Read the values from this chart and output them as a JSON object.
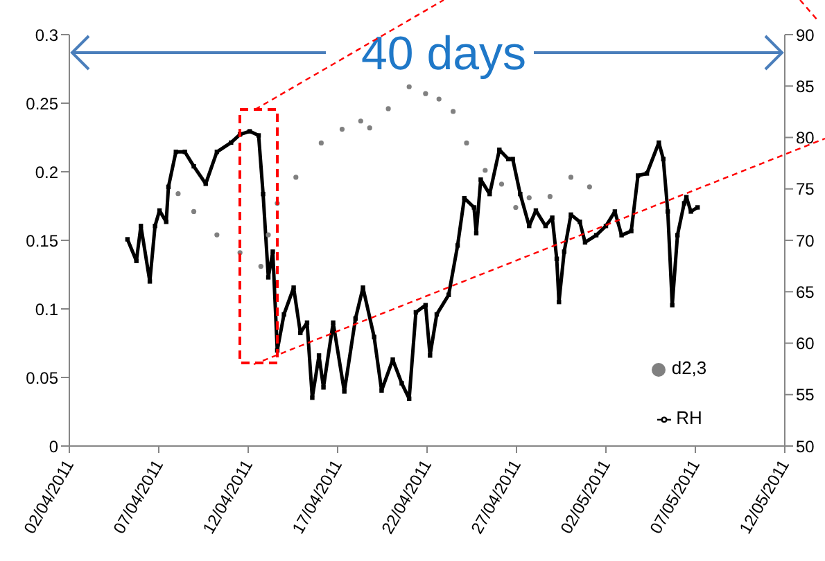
{
  "chart_data": {
    "type": "line",
    "annotations": [
      "40 days"
    ],
    "xlim": [
      "2011-04-02",
      "2011-05-12"
    ],
    "xticks": [
      {
        "value": "2011-04-02",
        "label": "02/04/2011"
      },
      {
        "value": "2011-04-07",
        "label": "07/04/2011"
      },
      {
        "value": "2011-04-12",
        "label": "12/04/2011"
      },
      {
        "value": "2011-04-17",
        "label": "17/04/2011"
      },
      {
        "value": "2011-04-22",
        "label": "22/04/2011"
      },
      {
        "value": "2011-04-27",
        "label": "27/04/2011"
      },
      {
        "value": "2011-05-02",
        "label": "02/05/2011"
      },
      {
        "value": "2011-05-07",
        "label": "07/05/2011"
      },
      {
        "value": "2011-05-12",
        "label": "12/05/2011"
      }
    ],
    "ylim": [
      0,
      0.3
    ],
    "yticks": [
      0,
      0.05,
      0.1,
      0.15,
      0.2,
      0.25,
      0.3
    ],
    "y2lim": [
      50,
      90
    ],
    "y2ticks": [
      50,
      55,
      60,
      65,
      70,
      75,
      80,
      85,
      90
    ],
    "grid": false,
    "legend": "bottom right",
    "series": [
      {
        "name": "d2,3",
        "type": "scatter",
        "color": "#808080",
        "marker": "circle",
        "x": [
          "2011-04-08T02:00",
          "2011-04-08T23:00",
          "2011-04-10T06:00",
          "2011-04-11T13:00",
          "2011-04-12T17:00",
          "2011-04-13T03:00",
          "2011-04-13T15:00",
          "2011-04-14T16:00",
          "2011-04-16T02:00",
          "2011-04-17T06:00",
          "2011-04-18T07:00",
          "2011-04-18T19:00",
          "2011-04-19T20:00",
          "2011-04-21T00:00",
          "2011-04-21T22:00",
          "2011-04-22T16:00",
          "2011-04-23T11:00",
          "2011-04-24T05:00",
          "2011-04-25T06:00",
          "2011-04-26T04:00",
          "2011-04-26T23:00",
          "2011-04-27T17:00",
          "2011-04-28T21:00",
          "2011-04-30T01:00",
          "2011-05-01T02:00"
        ],
        "values": [
          0.184,
          0.171,
          0.154,
          0.141,
          0.131,
          0.154,
          0.177,
          0.196,
          0.221,
          0.231,
          0.237,
          0.232,
          0.246,
          0.262,
          0.257,
          0.253,
          0.244,
          0.221,
          0.201,
          0.191,
          0.174,
          0.181,
          0.182,
          0.196,
          0.189
        ]
      },
      {
        "name": "RH",
        "type": "line",
        "axis": "y2",
        "color": "#000000",
        "marker": "square",
        "line_style": "solid",
        "x": [
          "2011-04-05T06:00",
          "2011-04-05T18:00",
          "2011-04-06T00:00",
          "2011-04-06T12:00",
          "2011-04-06T19:00",
          "2011-04-07T01:00",
          "2011-04-07T10:00",
          "2011-04-07T13:00",
          "2011-04-07T23:00",
          "2011-04-08T11:00",
          "2011-04-08T23:00",
          "2011-04-09T15:00",
          "2011-04-10T06:00",
          "2011-04-11T01:00",
          "2011-04-11T13:00",
          "2011-04-12T02:00",
          "2011-04-12T14:00",
          "2011-04-12T20:00",
          "2011-04-13T03:00",
          "2011-04-13T09:00",
          "2011-04-13T15:00",
          "2011-04-14T00:00",
          "2011-04-14T13:00",
          "2011-04-14T22:00",
          "2011-04-15T07:00",
          "2011-04-15T14:00",
          "2011-04-15T23:00",
          "2011-04-16T05:00",
          "2011-04-16T18:00",
          "2011-04-17T09:00",
          "2011-04-18T00:00",
          "2011-04-18T10:00",
          "2011-04-19T01:00",
          "2011-04-19T11:00",
          "2011-04-20T02:00",
          "2011-04-20T14:00",
          "2011-04-21T00:00",
          "2011-04-21T09:00",
          "2011-04-21T22:00",
          "2011-04-22T04:00",
          "2011-04-22T13:00",
          "2011-04-23T05:00",
          "2011-04-23T17:00",
          "2011-04-24T02:00",
          "2011-04-24T15:00",
          "2011-04-24T18:00",
          "2011-04-25T00:00",
          "2011-04-25T12:00",
          "2011-04-26T01:00",
          "2011-04-26T13:00",
          "2011-04-26T19:00",
          "2011-04-27T05:00",
          "2011-04-27T17:00",
          "2011-04-28T02:00",
          "2011-04-28T15:00",
          "2011-04-29T00:00",
          "2011-04-29T06:00",
          "2011-04-29T09:00",
          "2011-04-29T16:00",
          "2011-04-30T01:00",
          "2011-04-30T13:00",
          "2011-04-30T20:00",
          "2011-05-01T11:00",
          "2011-05-02T00:00",
          "2011-05-02T12:00",
          "2011-05-02T21:00",
          "2011-05-03T10:00",
          "2011-05-03T19:00",
          "2011-05-04T07:00",
          "2011-05-04T23:00",
          "2011-05-05T05:00",
          "2011-05-05T11:00",
          "2011-05-05T17:00",
          "2011-05-06T00:00",
          "2011-05-06T09:00",
          "2011-05-06T12:00",
          "2011-05-06T18:00",
          "2011-05-07T03:00"
        ],
        "values": [
          70.1,
          68.0,
          71.4,
          66.0,
          71.4,
          72.9,
          71.8,
          75.2,
          78.6,
          78.6,
          77.2,
          75.5,
          78.6,
          79.5,
          80.3,
          80.6,
          80.2,
          74.5,
          66.4,
          68.9,
          59.3,
          62.8,
          65.4,
          61.0,
          62.0,
          54.7,
          58.8,
          55.7,
          62.0,
          55.3,
          62.4,
          65.4,
          60.6,
          55.4,
          58.4,
          56.1,
          54.6,
          63.0,
          63.7,
          58.8,
          62.8,
          64.7,
          69.5,
          74.1,
          73.2,
          70.7,
          75.9,
          74.5,
          78.8,
          77.9,
          77.9,
          74.5,
          71.4,
          72.9,
          71.4,
          72.2,
          68.2,
          64.0,
          68.9,
          72.5,
          71.8,
          69.8,
          70.5,
          71.4,
          72.8,
          70.5,
          70.9,
          76.3,
          76.5,
          79.5,
          77.9,
          72.8,
          63.7,
          70.5,
          73.6,
          74.2,
          72.8,
          73.2
        ]
      }
    ]
  }
}
